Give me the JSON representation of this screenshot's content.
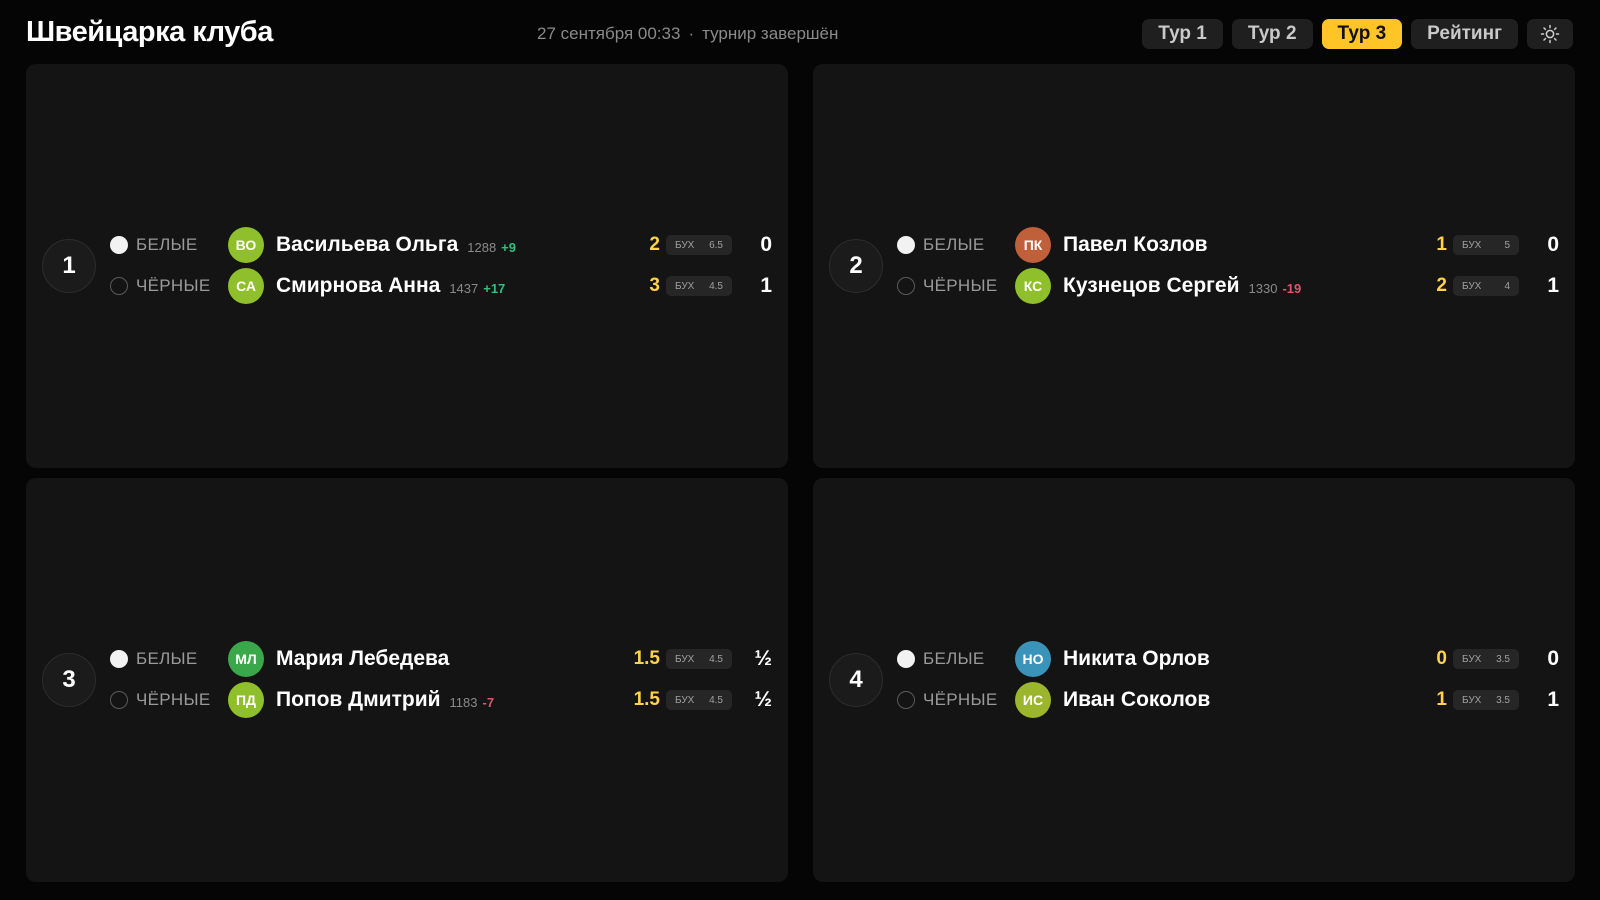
{
  "header": {
    "title": "Швейцарка клуба",
    "datetime": "27 сентября 00:33",
    "separator": "·",
    "status": "турнир завершён",
    "tabs": [
      {
        "label": "Тур 1",
        "active": false
      },
      {
        "label": "Тур 2",
        "active": false
      },
      {
        "label": "Тур 3",
        "active": true
      },
      {
        "label": "Рейтинг",
        "active": false
      }
    ],
    "theme_icon": "sun-icon"
  },
  "labels": {
    "white": "БЕЛЫЕ",
    "black": "ЧЁРНЫЕ",
    "buchholz": "БУХ"
  },
  "colors": {
    "background": "#050505",
    "card": "#141414",
    "accent": "#ffc526",
    "points": "#ffd24a",
    "delta_positive": "#2ec27e",
    "delta_negative": "#e0556b"
  },
  "boards": [
    {
      "number": "1",
      "white": {
        "initials": "ВО",
        "avatar_color": "#8fbf2a",
        "name": "Васильева Ольга",
        "rating": "1288",
        "delta": "+9",
        "points": "2",
        "buchholz": "6.5",
        "result": "0"
      },
      "black": {
        "initials": "СА",
        "avatar_color": "#8fbf2a",
        "name": "Смирнова Анна",
        "rating": "1437",
        "delta": "+17",
        "points": "3",
        "buchholz": "4.5",
        "result": "1"
      }
    },
    {
      "number": "2",
      "white": {
        "initials": "ПК",
        "avatar_color": "#c0603b",
        "name": "Павел Козлов",
        "rating": "",
        "delta": "",
        "points": "1",
        "buchholz": "5",
        "result": "0"
      },
      "black": {
        "initials": "КС",
        "avatar_color": "#8fbf2a",
        "name": "Кузнецов Сергей",
        "rating": "1330",
        "delta": "-19",
        "points": "2",
        "buchholz": "4",
        "result": "1"
      }
    },
    {
      "number": "3",
      "white": {
        "initials": "МЛ",
        "avatar_color": "#3aa84a",
        "name": "Мария Лебедева",
        "rating": "",
        "delta": "",
        "points": "1.5",
        "buchholz": "4.5",
        "result": "½"
      },
      "black": {
        "initials": "ПД",
        "avatar_color": "#8fbf2a",
        "name": "Попов Дмитрий",
        "rating": "1183",
        "delta": "-7",
        "points": "1.5",
        "buchholz": "4.5",
        "result": "½"
      }
    },
    {
      "number": "4",
      "white": {
        "initials": "НО",
        "avatar_color": "#3a93b8",
        "name": "Никита Орлов",
        "rating": "",
        "delta": "",
        "points": "0",
        "buchholz": "3.5",
        "result": "0"
      },
      "black": {
        "initials": "ИС",
        "avatar_color": "#9bb52c",
        "name": "Иван Соколов",
        "rating": "",
        "delta": "",
        "points": "1",
        "buchholz": "3.5",
        "result": "1"
      }
    }
  ]
}
